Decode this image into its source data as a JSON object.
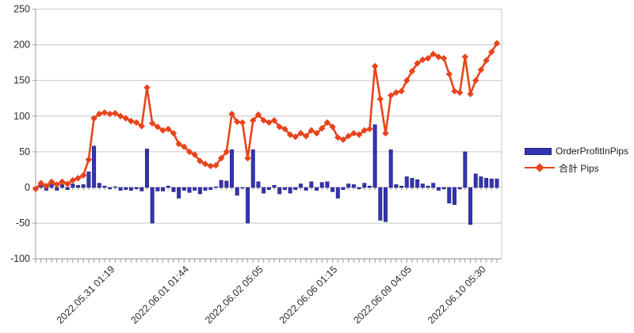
{
  "chart_data": {
    "type": "bar",
    "subtype": "bar-line-combo",
    "title": "",
    "xlabel": "",
    "ylabel": "",
    "ylim": [
      -100,
      250
    ],
    "y_tick_step": 50,
    "y_tick_labels": [
      "250",
      "200",
      "150",
      "100",
      "50",
      "0",
      "-50",
      "-100"
    ],
    "grid": true,
    "legend_position": "right",
    "x_tick_labels": [
      {
        "index": 15,
        "label": "2022.05.31 01:19"
      },
      {
        "index": 29,
        "label": "2022.06.01 01:44"
      },
      {
        "index": 43,
        "label": "2022.06.02 05:05"
      },
      {
        "index": 57,
        "label": "2022.06.06 01:15"
      },
      {
        "index": 71,
        "label": "2022.06.09 04:05"
      },
      {
        "index": 85,
        "label": "2022.06.10 05:30"
      }
    ],
    "series": [
      {
        "name": "OrderProfitInPips",
        "type": "bar",
        "color": "#3434b2",
        "values": [
          -2,
          8,
          -4,
          6,
          -4,
          4,
          -3,
          5,
          3,
          4,
          22,
          58,
          6,
          2,
          -2,
          1,
          -4,
          -3,
          -4,
          -2,
          -5,
          54,
          -50,
          -5,
          -5,
          2,
          -6,
          -15,
          -4,
          -7,
          -4,
          -9,
          -4,
          -3,
          1,
          10,
          9,
          53,
          -11,
          -1,
          -50,
          53,
          8,
          -8,
          -3,
          3,
          -9,
          -3,
          -8,
          -3,
          5,
          -4,
          8,
          -4,
          7,
          8,
          -6,
          -15,
          -3,
          5,
          4,
          -2,
          6,
          2,
          88,
          -46,
          -48,
          53,
          4,
          2,
          15,
          13,
          11,
          5,
          2,
          6,
          -4,
          -2,
          -22,
          -24,
          -2,
          50,
          -52,
          19,
          15,
          13,
          12,
          12
        ]
      },
      {
        "name": "合計 Pips",
        "type": "line",
        "color": "#e8441c",
        "marker": "diamond",
        "values": [
          -2,
          6,
          2,
          8,
          4,
          8,
          5,
          10,
          13,
          17,
          39,
          97,
          103,
          105,
          103,
          104,
          100,
          97,
          93,
          91,
          86,
          140,
          90,
          85,
          80,
          82,
          76,
          61,
          57,
          50,
          46,
          37,
          33,
          30,
          31,
          41,
          50,
          103,
          92,
          91,
          41,
          94,
          102,
          94,
          91,
          94,
          85,
          82,
          74,
          71,
          76,
          72,
          80,
          76,
          83,
          91,
          85,
          70,
          67,
          72,
          76,
          74,
          80,
          82,
          170,
          124,
          76,
          129,
          133,
          135,
          150,
          163,
          174,
          179,
          181,
          187,
          183,
          181,
          159,
          135,
          133,
          183,
          131,
          150,
          165,
          178,
          190,
          202
        ]
      }
    ]
  },
  "legend": {
    "bar_label": "OrderProfitInPips",
    "line_label": "合計 Pips"
  },
  "colors": {
    "bar_fill": "#3434b2",
    "bar_border": "#22227c",
    "line": "#e8441c",
    "gridline": "#c6c6c6",
    "axis": "#9a9a9a",
    "tick_text": "#2b2b2b"
  }
}
